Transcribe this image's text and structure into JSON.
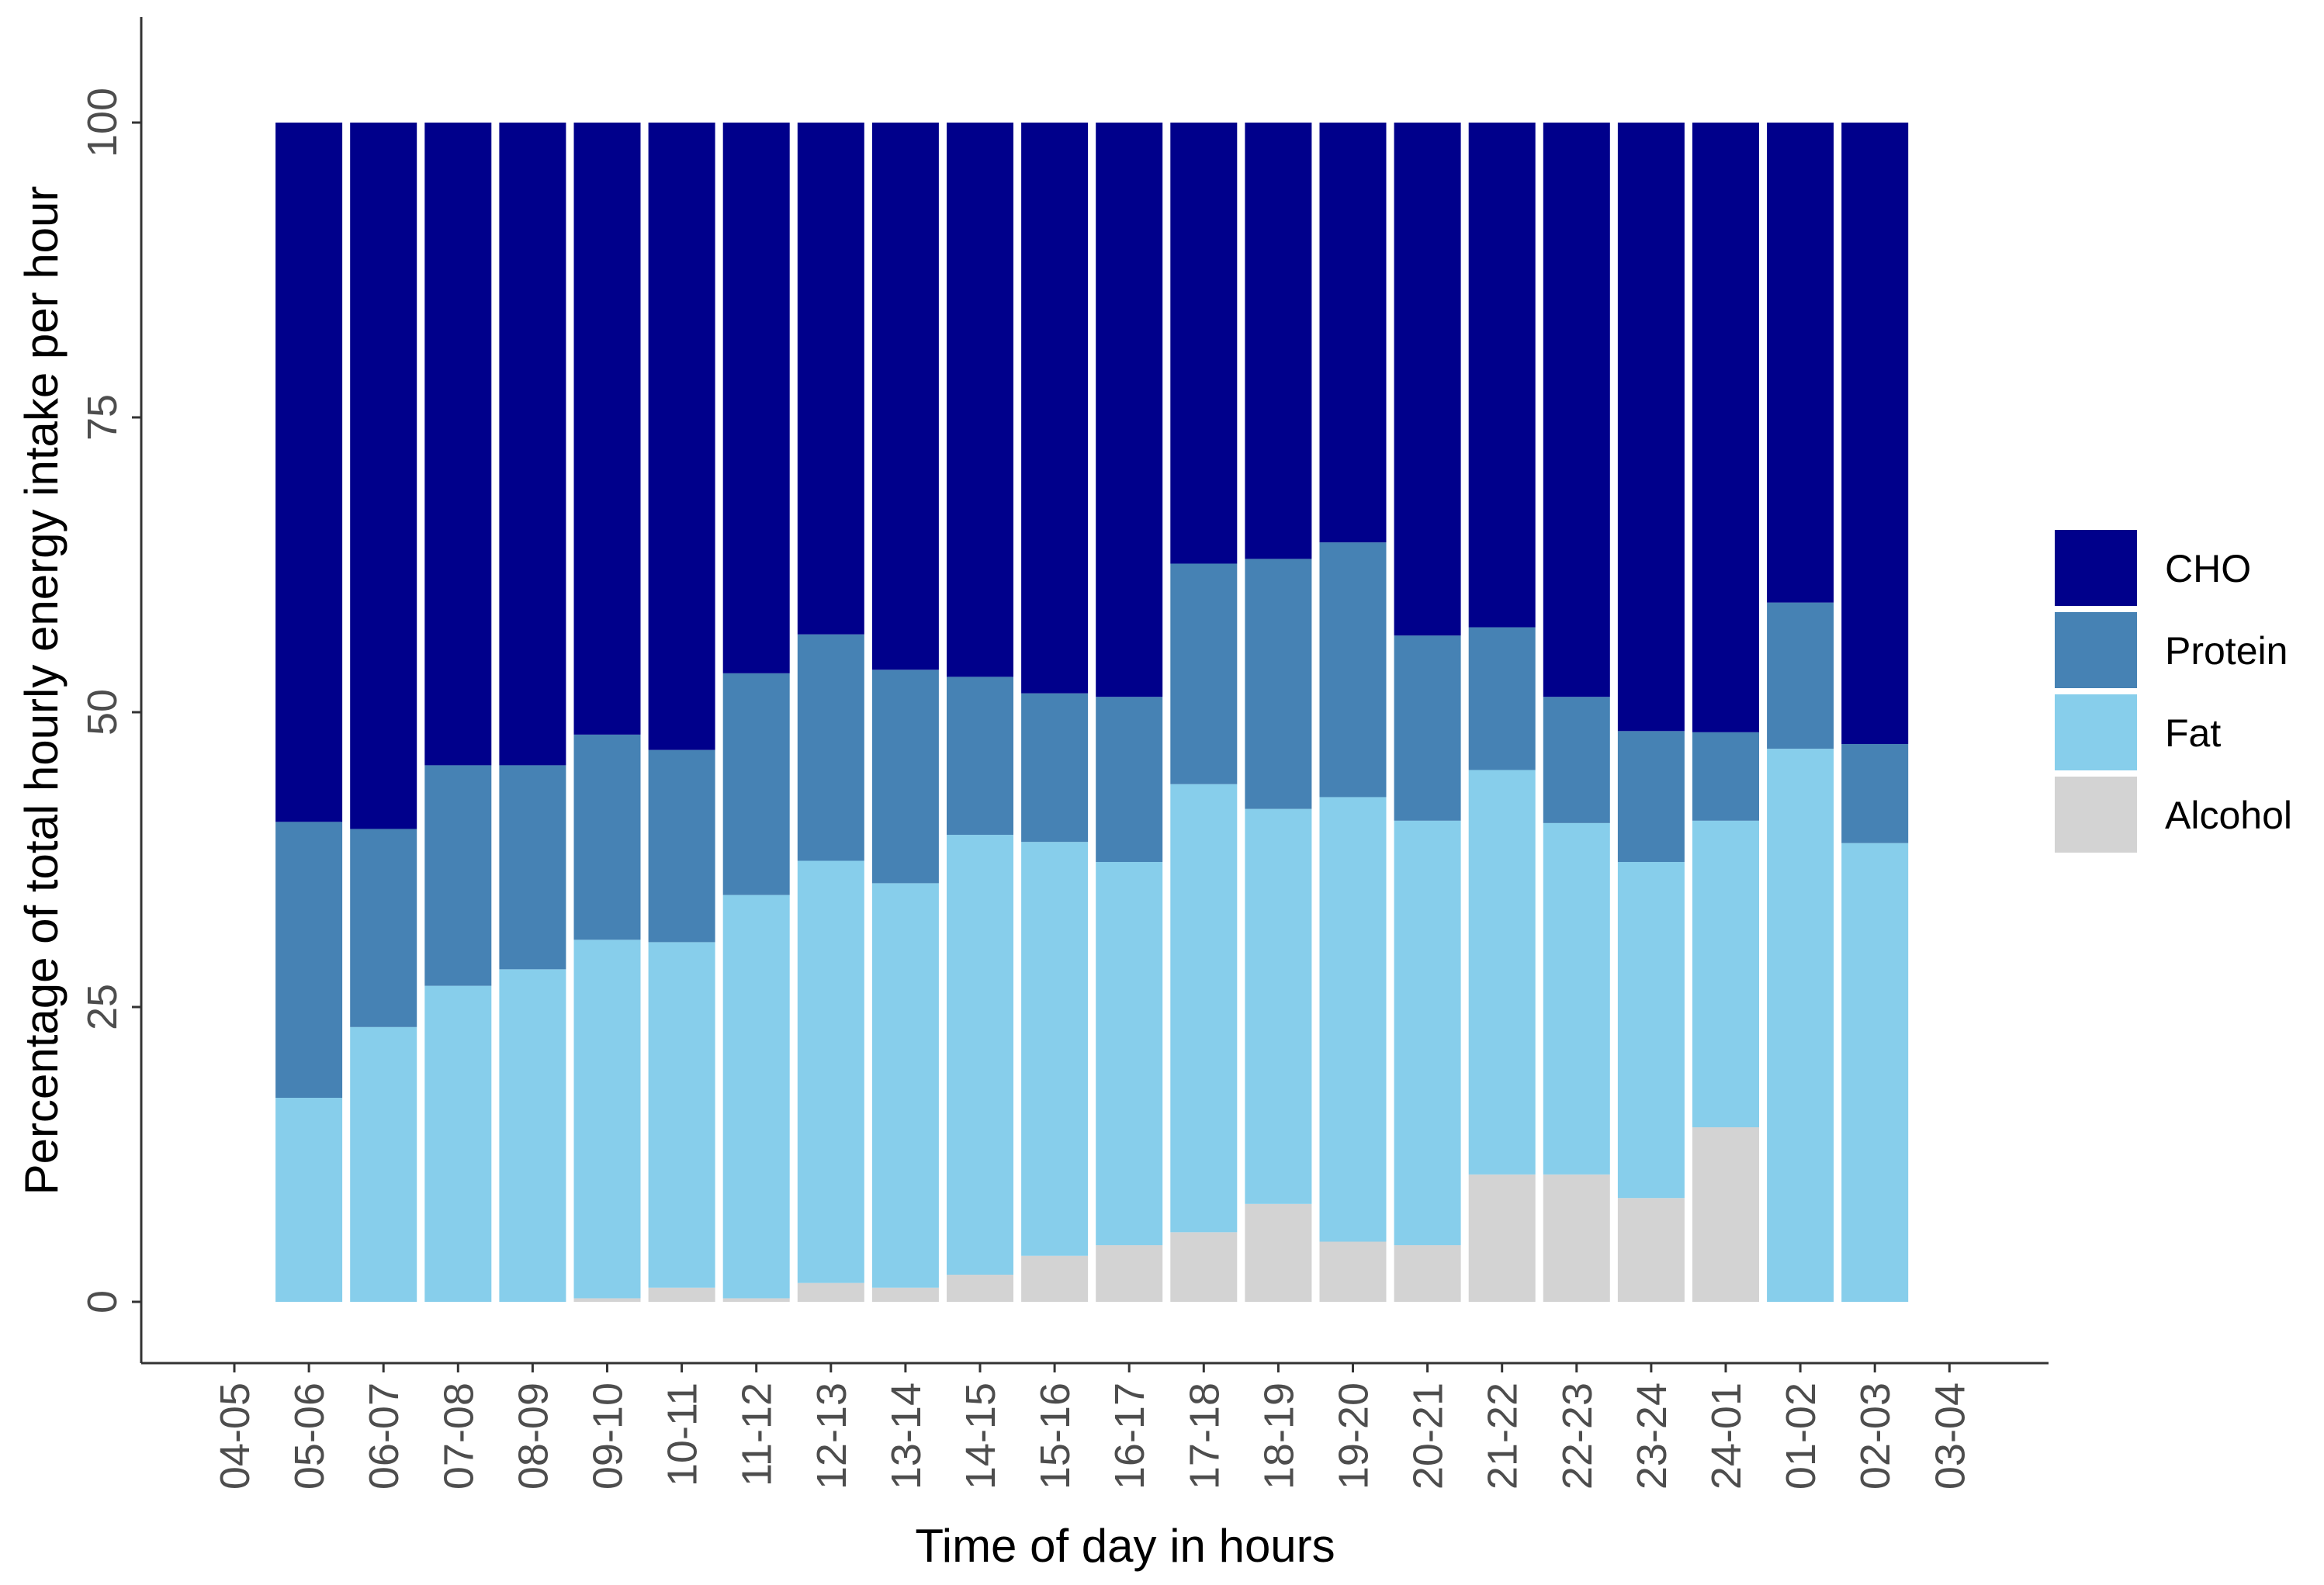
{
  "chart_data": {
    "type": "bar",
    "stacked": true,
    "xlabel": "Time of day in hours",
    "ylabel": "Percentage of total hourly energy intake per hour",
    "ylim": [
      0,
      100
    ],
    "yticks": [
      0,
      25,
      50,
      75,
      100
    ],
    "grid": false,
    "legend_position": "right",
    "categories": [
      "04-05",
      "05-06",
      "06-07",
      "07-08",
      "08-09",
      "09-10",
      "10-11",
      "11-12",
      "12-13",
      "13-14",
      "14-15",
      "15-16",
      "16-17",
      "17-18",
      "18-19",
      "19-20",
      "20-21",
      "21-22",
      "22-23",
      "23-24",
      "24-01",
      "01-02",
      "02-03",
      "03-04"
    ],
    "series": [
      {
        "name": "Alcohol",
        "color": "#d3d3d3",
        "values": [
          0,
          0,
          0,
          0,
          0,
          0.3,
          1.2,
          0.3,
          1.6,
          1.2,
          2.3,
          3.9,
          4.8,
          5.9,
          8.3,
          5.1,
          4.8,
          10.8,
          10.8,
          8.8,
          14.8,
          0,
          0,
          0
        ]
      },
      {
        "name": "Fat",
        "color": "#87ceeb",
        "values": [
          0,
          17.3,
          23.3,
          26.8,
          28.2,
          30.4,
          29.3,
          34.2,
          35.8,
          34.3,
          37.3,
          35.1,
          32.5,
          38.0,
          33.5,
          37.7,
          36.0,
          34.3,
          29.8,
          28.5,
          26.0,
          46.9,
          38.9,
          0
        ]
      },
      {
        "name": "Protein",
        "color": "#4682b4",
        "values": [
          0,
          23.4,
          16.8,
          18.7,
          17.3,
          17.4,
          16.3,
          18.8,
          19.2,
          18.1,
          13.4,
          12.6,
          14.0,
          18.7,
          21.2,
          21.6,
          15.7,
          12.1,
          10.7,
          11.1,
          7.5,
          12.4,
          8.4,
          0
        ]
      },
      {
        "name": "CHO",
        "color": "#00008b",
        "values": [
          0,
          59.3,
          59.9,
          54.5,
          54.5,
          51.9,
          53.2,
          46.7,
          43.4,
          46.4,
          47.0,
          48.4,
          48.7,
          37.4,
          37.0,
          35.6,
          43.5,
          42.8,
          48.7,
          51.6,
          51.7,
          40.7,
          52.7,
          0
        ]
      }
    ],
    "legend_order": [
      "CHO",
      "Protein",
      "Fat",
      "Alcohol"
    ]
  }
}
